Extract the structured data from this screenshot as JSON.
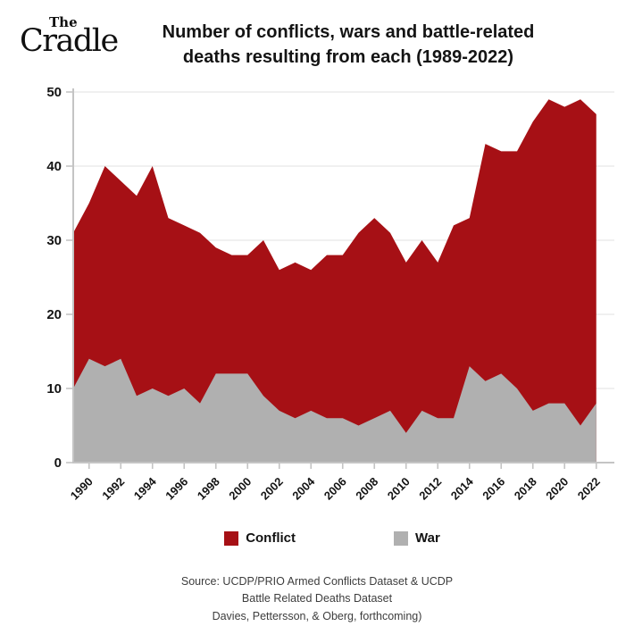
{
  "brand": {
    "the": "The",
    "name": "Cradle"
  },
  "title": {
    "line1": "Number of conflicts, wars and battle-related",
    "line2": "deaths resulting from each (1989-2022)"
  },
  "legend": [
    {
      "label": "Conflict",
      "color": "#A61015"
    },
    {
      "label": "War",
      "color": "#B0B0B0"
    }
  ],
  "source": {
    "line1": "Source: UCDP/PRIO Armed Conflicts Dataset & UCDP",
    "line2": "Battle Related Deaths Dataset",
    "line3": "Davies, Pettersson, & Oberg, forthcoming)"
  },
  "chart_data": {
    "type": "area",
    "title": "Number of conflicts, wars and battle-related deaths resulting from each (1989-2022)",
    "xlabel": "",
    "ylabel": "",
    "ylim": [
      0,
      50
    ],
    "yticks": [
      0,
      10,
      20,
      30,
      40,
      50
    ],
    "xticks": [
      1990,
      1992,
      1994,
      1996,
      1998,
      2000,
      2002,
      2004,
      2006,
      2008,
      2010,
      2012,
      2014,
      2016,
      2018,
      2020,
      2022
    ],
    "grid": true,
    "legend_position": "bottom",
    "overlay_note": "Both series rise from the zero baseline (overlaid, not stacked); War is drawn on top of Conflict.",
    "x": [
      1989,
      1990,
      1991,
      1992,
      1993,
      1994,
      1995,
      1996,
      1997,
      1998,
      1999,
      2000,
      2001,
      2002,
      2003,
      2004,
      2005,
      2006,
      2007,
      2008,
      2009,
      2010,
      2011,
      2012,
      2013,
      2014,
      2015,
      2016,
      2017,
      2018,
      2019,
      2020,
      2021,
      2022
    ],
    "series": [
      {
        "name": "Conflict",
        "color": "#A61015",
        "values": [
          31,
          35,
          40,
          38,
          36,
          40,
          33,
          32,
          31,
          29,
          28,
          28,
          30,
          26,
          27,
          26,
          28,
          28,
          31,
          33,
          31,
          27,
          30,
          27,
          32,
          33,
          43,
          42,
          42,
          46,
          49,
          48,
          49,
          47
        ]
      },
      {
        "name": "War",
        "color": "#B0B0B0",
        "values": [
          10,
          14,
          13,
          14,
          9,
          10,
          9,
          10,
          8,
          12,
          12,
          12,
          9,
          7,
          6,
          7,
          6,
          6,
          5,
          6,
          7,
          4,
          7,
          6,
          6,
          13,
          11,
          12,
          10,
          7,
          8,
          8,
          5,
          8
        ]
      }
    ],
    "colors": {
      "grid": "#e6e6e6",
      "axis": "#c4c4c4",
      "tick_text": "#141414"
    }
  }
}
